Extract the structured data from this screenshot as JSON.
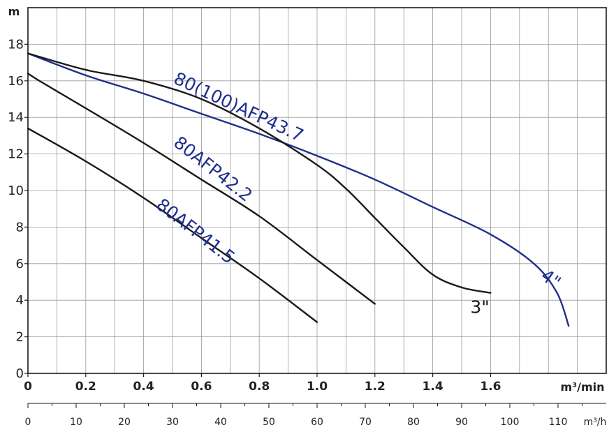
{
  "chart_data": {
    "type": "line",
    "title": "",
    "ylabel": "m",
    "xlabel": "m³/min",
    "xlabel_secondary": "m³/h",
    "ylim": [
      0,
      20
    ],
    "xlim": [
      0,
      2.0
    ],
    "y_ticks": [
      "0",
      "2",
      "4",
      "6",
      "8",
      "10",
      "12",
      "14",
      "16",
      "18"
    ],
    "x_ticks": [
      "0",
      "0.2",
      "0.4",
      "0.6",
      "0.8",
      "1.0",
      "1.2",
      "1.4",
      "1.6"
    ],
    "x_ticks_secondary": [
      "0",
      "10",
      "20",
      "30",
      "40",
      "50",
      "60",
      "70",
      "80",
      "90",
      "100",
      "110"
    ],
    "grid": true,
    "series": [
      {
        "name": "80(100)AFP43.7",
        "color": "#1f2f8c",
        "x": [
          0,
          0.2,
          0.4,
          0.6,
          0.8,
          1.0,
          1.2,
          1.4,
          1.6,
          1.75,
          1.83,
          1.87
        ],
        "y": [
          17.5,
          16.3,
          15.3,
          14.2,
          13.1,
          11.9,
          10.6,
          9.1,
          7.6,
          6.0,
          4.4,
          2.6
        ]
      },
      {
        "name": "3\"",
        "color": "#1a1a1a",
        "x": [
          0,
          0.2,
          0.4,
          0.6,
          0.8,
          1.0,
          1.1,
          1.2,
          1.3,
          1.4,
          1.5,
          1.6
        ],
        "y": [
          17.5,
          16.6,
          16.0,
          15.0,
          13.4,
          11.4,
          10.1,
          8.5,
          6.9,
          5.4,
          4.7,
          4.4
        ]
      },
      {
        "name": "80AFP42.2",
        "color": "#1a1a1a",
        "x": [
          0,
          0.05,
          0.2,
          0.4,
          0.6,
          0.8,
          1.0,
          1.2
        ],
        "y": [
          16.4,
          15.9,
          14.5,
          12.6,
          10.6,
          8.6,
          6.2,
          3.8
        ]
      },
      {
        "name": "80AFP41.5",
        "color": "#1a1a1a",
        "x": [
          0,
          0.2,
          0.4,
          0.6,
          0.8,
          1.0
        ],
        "y": [
          13.4,
          11.6,
          9.6,
          7.4,
          5.2,
          2.8
        ]
      }
    ],
    "annotations": [
      {
        "text": "80(100)AFP43.7",
        "color": "#1f2f8c",
        "x": 0.5,
        "y": 15.9,
        "angle": 25
      },
      {
        "text": "80AFP42.2",
        "color": "#1f2f8c",
        "x": 0.5,
        "y": 12.5,
        "angle": 38
      },
      {
        "text": "80AFP41.5",
        "color": "#1f2f8c",
        "x": 0.44,
        "y": 9.1,
        "angle": 38
      },
      {
        "text": "3\"",
        "color": "#1a1a1a",
        "x": 1.53,
        "y": 3.3,
        "angle": 0
      },
      {
        "text": "4\"",
        "color": "#1f2f8c",
        "x": 1.77,
        "y": 5.2,
        "angle": 35
      }
    ]
  }
}
